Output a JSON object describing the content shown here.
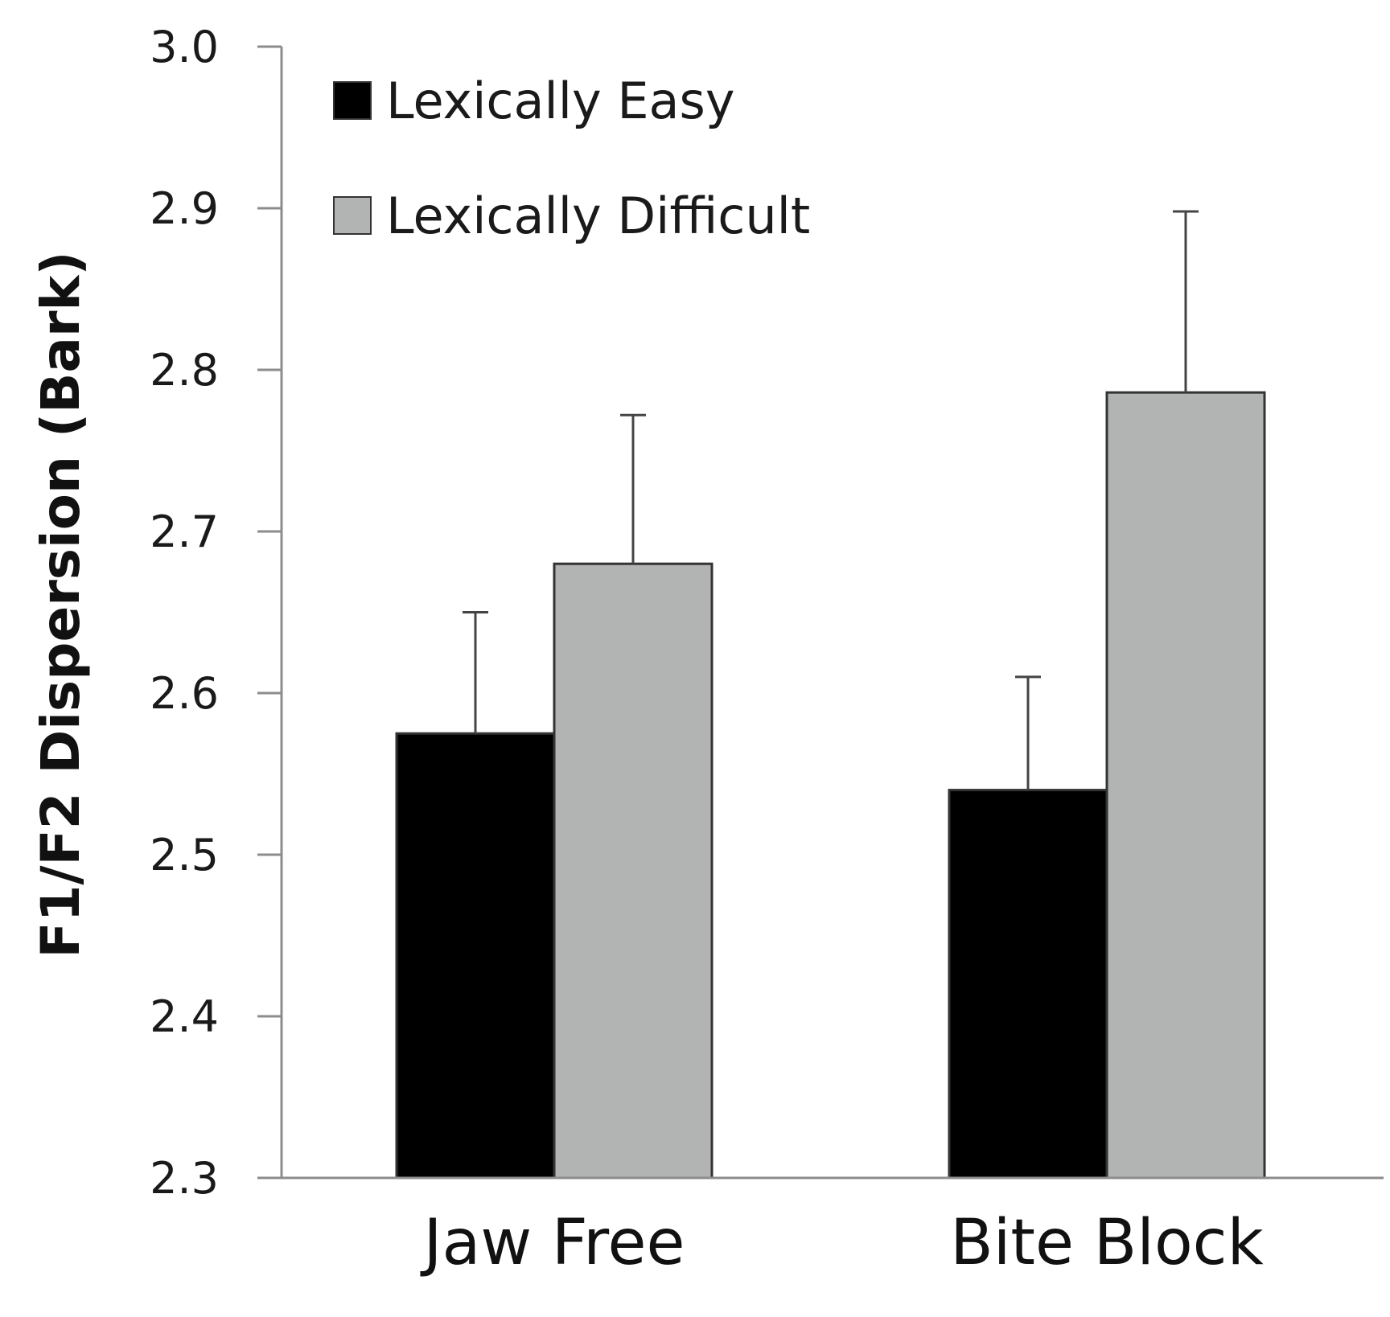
{
  "chart_data": {
    "type": "bar",
    "title": "",
    "xlabel": "",
    "ylabel": "F1/F2 Dispersion (Bark)",
    "ylim": [
      2.3,
      3.0
    ],
    "yticks": [
      "3.0",
      "2.9",
      "2.8",
      "2.7",
      "2.6",
      "2.5",
      "2.4",
      "2.3"
    ],
    "categories": [
      "Jaw Free",
      "Bite Block"
    ],
    "series": [
      {
        "name": "Lexically Easy",
        "color": "#000000",
        "values": [
          2.575,
          2.54
        ],
        "error": [
          0.075,
          0.07
        ]
      },
      {
        "name": "Lexically Difficult",
        "color": "#b2b3b3",
        "values": [
          2.68,
          2.786
        ],
        "error": [
          0.092,
          0.112
        ]
      }
    ],
    "legend_position": "top-left",
    "grid": false
  }
}
